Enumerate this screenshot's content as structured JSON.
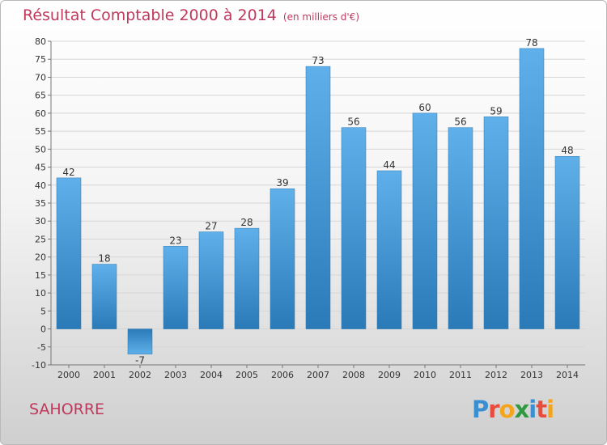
{
  "header": {
    "title": "Résultat Comptable 2000 à 2014",
    "subtitle": "(en milliers d'€)"
  },
  "footer": {
    "town": "SAHORRE",
    "logo": "Proxiti"
  },
  "colors": {
    "title": "#c0395d",
    "bar_light": "#5fb0ea",
    "bar_dark": "#2a7ab8"
  },
  "chart_data": {
    "type": "bar",
    "title": "Résultat Comptable 2000 à 2014",
    "subtitle": "(en milliers d'€)",
    "xlabel": "",
    "ylabel": "",
    "categories": [
      "2000",
      "2001",
      "2002",
      "2003",
      "2004",
      "2005",
      "2006",
      "2007",
      "2008",
      "2009",
      "2010",
      "2011",
      "2012",
      "2013",
      "2014"
    ],
    "values": [
      42,
      18,
      -7,
      23,
      27,
      28,
      39,
      73,
      56,
      44,
      60,
      56,
      59,
      78,
      48
    ],
    "ylim": [
      -10,
      80
    ],
    "yticks": [
      -10,
      -5,
      0,
      5,
      10,
      15,
      20,
      25,
      30,
      35,
      40,
      45,
      50,
      55,
      60,
      65,
      70,
      75,
      80
    ],
    "grid": true,
    "legend": "none"
  }
}
